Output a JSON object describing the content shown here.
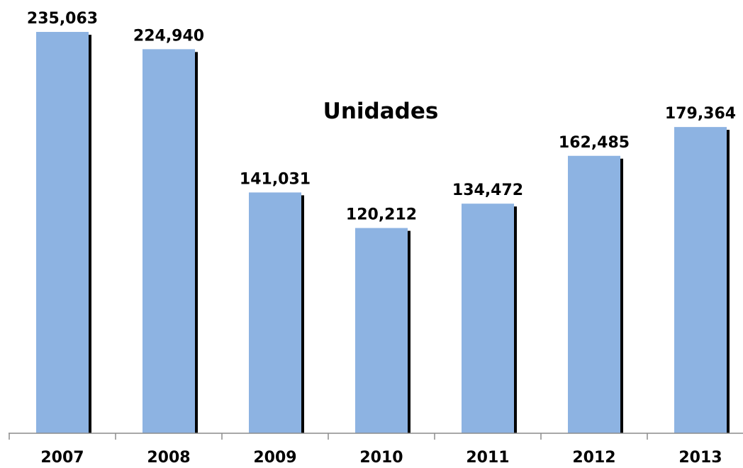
{
  "chart_data": {
    "type": "bar",
    "title": "Unidades",
    "xlabel": "",
    "ylabel": "",
    "categories": [
      "2007",
      "2008",
      "2009",
      "2010",
      "2011",
      "2012",
      "2013"
    ],
    "values": [
      235063,
      224940,
      141031,
      120212,
      134472,
      162485,
      179364
    ],
    "value_labels": [
      "235,063",
      "224,940",
      "141,031",
      "120,212",
      "134,472",
      "162,485",
      "179,364"
    ],
    "ylim": [
      0,
      235063
    ],
    "grid": false,
    "legend": "none",
    "bar_color": "#8DB3E2",
    "shadow_color": "#000000"
  }
}
